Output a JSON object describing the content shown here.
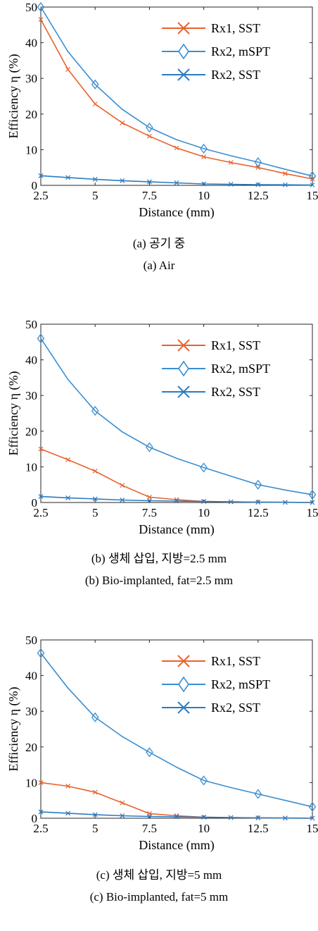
{
  "chart_data": [
    {
      "type": "line",
      "xlabel": "Distance (mm)",
      "ylabel": "Efficiency η (%)",
      "xlim": [
        2.5,
        15
      ],
      "ylim": [
        0,
        50
      ],
      "xticks": [
        "2.5",
        "5",
        "7.5",
        "10",
        "12.5",
        "15"
      ],
      "yticks": [
        "0",
        "10",
        "20",
        "30",
        "40",
        "50"
      ],
      "legend_position": "top-right",
      "grid": false,
      "x": [
        2.5,
        3.75,
        5,
        6.25,
        7.5,
        8.75,
        10,
        11.25,
        12.5,
        13.75,
        15
      ],
      "series": [
        {
          "name": "Rx1, SST",
          "color": "#e8622c",
          "marker": "x",
          "values": [
            46.5,
            32.5,
            22.8,
            17.5,
            13.8,
            10.5,
            8.0,
            6.4,
            5.0,
            3.3,
            1.8
          ]
        },
        {
          "name": "Rx2, mSPT",
          "color": "#3b8ed0",
          "marker": "diamond",
          "values": [
            50.0,
            37.5,
            28.3,
            21.3,
            16.2,
            12.8,
            10.3,
            8.3,
            6.5,
            4.5,
            2.6
          ]
        },
        {
          "name": "Rx2, SST",
          "color": "#2c7bc0",
          "marker": "x",
          "values": [
            2.7,
            2.2,
            1.7,
            1.3,
            1.0,
            0.7,
            0.4,
            0.3,
            0.2,
            0.15,
            0.1
          ]
        }
      ],
      "caption_ko": "(a) 공기 중",
      "caption_en": "(a) Air"
    },
    {
      "type": "line",
      "xlabel": "Distance (mm)",
      "ylabel": "Efficiency η (%)",
      "xlim": [
        2.5,
        15
      ],
      "ylim": [
        0,
        50
      ],
      "xticks": [
        "2.5",
        "5",
        "7.5",
        "10",
        "12.5",
        "15"
      ],
      "yticks": [
        "0",
        "10",
        "20",
        "30",
        "40",
        "50"
      ],
      "legend_position": "top-right",
      "grid": false,
      "x": [
        2.5,
        3.75,
        5,
        6.25,
        7.5,
        8.75,
        10,
        11.25,
        12.5,
        13.75,
        15
      ],
      "series": [
        {
          "name": "Rx1, SST",
          "color": "#e8622c",
          "marker": "x",
          "values": [
            15.0,
            12.0,
            8.8,
            4.8,
            1.5,
            0.8,
            0.3,
            0.2,
            0.1,
            0.05,
            0.0
          ]
        },
        {
          "name": "Rx2, mSPT",
          "color": "#3b8ed0",
          "marker": "diamond",
          "values": [
            46.0,
            34.5,
            25.7,
            19.8,
            15.5,
            12.4,
            9.8,
            7.4,
            5.0,
            3.5,
            2.2
          ]
        },
        {
          "name": "Rx2, SST",
          "color": "#2c7bc0",
          "marker": "x",
          "values": [
            1.7,
            1.3,
            1.0,
            0.7,
            0.5,
            0.4,
            0.3,
            0.2,
            0.1,
            0.05,
            0.0
          ]
        }
      ],
      "caption_ko": "(b) 생체 삽입, 지방=2.5 mm",
      "caption_en": "(b) Bio-implanted, fat=2.5 mm"
    },
    {
      "type": "line",
      "xlabel": "Distance (mm)",
      "ylabel": "Efficiency η (%)",
      "xlim": [
        2.5,
        15
      ],
      "ylim": [
        0,
        50
      ],
      "xticks": [
        "2.5",
        "5",
        "7.5",
        "10",
        "12.5",
        "15"
      ],
      "yticks": [
        "0",
        "10",
        "20",
        "30",
        "40",
        "50"
      ],
      "legend_position": "top-right",
      "grid": false,
      "x": [
        2.5,
        3.75,
        5,
        6.25,
        7.5,
        8.75,
        10,
        11.25,
        12.5,
        13.75,
        15
      ],
      "series": [
        {
          "name": "Rx1, SST",
          "color": "#e8622c",
          "marker": "x",
          "values": [
            10.0,
            9.0,
            7.3,
            4.3,
            1.3,
            0.7,
            0.3,
            0.2,
            0.1,
            0.05,
            0.0
          ]
        },
        {
          "name": "Rx2, mSPT",
          "color": "#3b8ed0",
          "marker": "diamond",
          "values": [
            46.3,
            36.5,
            28.3,
            22.9,
            18.5,
            14.3,
            10.6,
            8.6,
            6.8,
            5.0,
            3.2
          ]
        },
        {
          "name": "Rx2, SST",
          "color": "#2c7bc0",
          "marker": "x",
          "values": [
            1.8,
            1.4,
            1.0,
            0.7,
            0.5,
            0.4,
            0.3,
            0.2,
            0.1,
            0.05,
            0.0
          ]
        }
      ],
      "caption_ko": "(c) 생체 삽입, 지방=5 mm",
      "caption_en": "(c) Bio-implanted, fat=5 mm"
    }
  ]
}
